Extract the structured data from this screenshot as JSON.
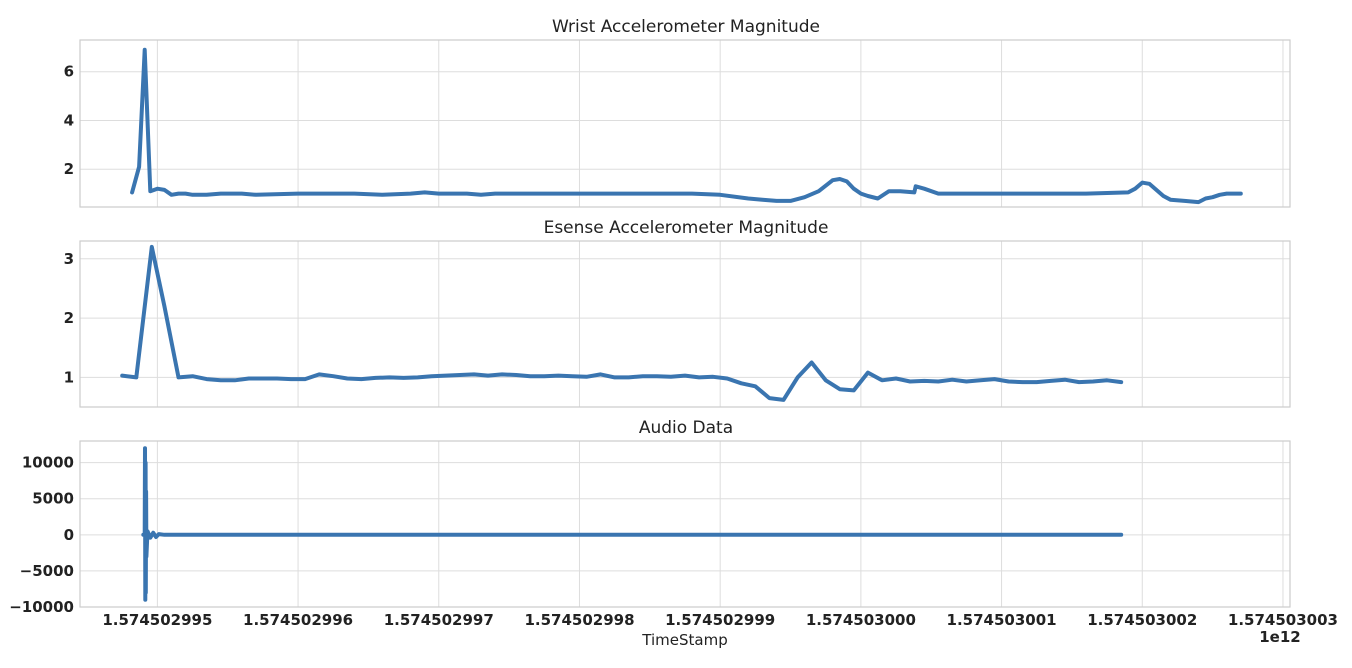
{
  "chart_data": [
    {
      "type": "line",
      "title": "Wrist Accelerometer Magnitude",
      "xlabel": "",
      "ylabel": "",
      "grid": true,
      "xlim": [
        1574502994.45,
        1574503003.05
      ],
      "ylim": [
        0.45,
        7.3
      ],
      "yticks": [
        2,
        4,
        6
      ],
      "ytick_labels": [
        "2",
        "4",
        "6"
      ],
      "series": [
        {
          "color": "#3a75b0",
          "x": [
            1574502994.82,
            1574502994.87,
            1574502994.91,
            1574502994.95,
            1574502995.0,
            1574502995.05,
            1574502995.1,
            1574502995.15,
            1574502995.2,
            1574502995.25,
            1574502995.3,
            1574502995.35,
            1574502995.45,
            1574502995.6,
            1574502995.7,
            1574502996.0,
            1574502996.2,
            1574502996.4,
            1574502996.6,
            1574502996.8,
            1574502996.9,
            1574502997.0,
            1574502997.2,
            1574502997.3,
            1574502997.4,
            1574502997.6,
            1574502998.0,
            1574502998.4,
            1574502998.8,
            1574502999.0,
            1574502999.2,
            1574502999.3,
            1574502999.4,
            1574502999.5,
            1574502999.6,
            1574502999.7,
            1574502999.8,
            1574502999.85,
            1574502999.9,
            1574502999.95,
            1574503000.0,
            1574503000.05,
            1574503000.12,
            1574503000.2,
            1574503000.28,
            1574503000.38,
            1574503000.39,
            1574503000.45,
            1574503000.55,
            1574503001.0,
            1574503001.4,
            1574503001.6,
            1574503001.9,
            1574503001.95,
            1574503002.0,
            1574503002.05,
            1574503002.15,
            1574503002.2,
            1574503002.3,
            1574503002.4,
            1574503002.45,
            1574503002.5,
            1574503002.55,
            1574503002.6,
            1574503002.7
          ],
          "y": [
            1.05,
            2.1,
            6.9,
            1.1,
            1.2,
            1.15,
            0.95,
            1.0,
            1.0,
            0.95,
            0.95,
            0.95,
            1.0,
            1.0,
            0.95,
            1.0,
            1.0,
            1.0,
            0.95,
            1.0,
            1.05,
            1.0,
            1.0,
            0.95,
            1.0,
            1.0,
            1.0,
            1.0,
            1.0,
            0.95,
            0.8,
            0.75,
            0.7,
            0.7,
            0.85,
            1.1,
            1.55,
            1.6,
            1.5,
            1.2,
            1.0,
            0.9,
            0.8,
            1.1,
            1.1,
            1.05,
            1.3,
            1.2,
            1.0,
            1.0,
            1.0,
            1.0,
            1.05,
            1.2,
            1.45,
            1.4,
            0.9,
            0.75,
            0.7,
            0.65,
            0.8,
            0.85,
            0.95,
            1.0,
            1.0
          ]
        }
      ]
    },
    {
      "type": "line",
      "title": "Esense Accelerometer Magnitude",
      "xlabel": "",
      "ylabel": "",
      "grid": true,
      "xlim": [
        1574502994.45,
        1574503003.05
      ],
      "ylim": [
        0.5,
        3.3
      ],
      "yticks": [
        1,
        2,
        3
      ],
      "ytick_labels": [
        "1",
        "2",
        "3"
      ],
      "series": [
        {
          "color": "#3a75b0",
          "x": [
            1574502994.75,
            1574502994.85,
            1574502994.96,
            1574502995.05,
            1574502995.15,
            1574502995.25,
            1574502995.35,
            1574502995.45,
            1574502995.55,
            1574502995.65,
            1574502995.75,
            1574502995.85,
            1574502995.95,
            1574502996.05,
            1574502996.15,
            1574502996.25,
            1574502996.35,
            1574502996.45,
            1574502996.55,
            1574502996.65,
            1574502996.75,
            1574502996.85,
            1574502996.95,
            1574502997.05,
            1574502997.15,
            1574502997.25,
            1574502997.35,
            1574502997.45,
            1574502997.55,
            1574502997.65,
            1574502997.75,
            1574502997.85,
            1574502997.95,
            1574502998.05,
            1574502998.15,
            1574502998.25,
            1574502998.35,
            1574502998.45,
            1574502998.55,
            1574502998.65,
            1574502998.75,
            1574502998.85,
            1574502998.95,
            1574502999.05,
            1574502999.15,
            1574502999.25,
            1574502999.35,
            1574502999.45,
            1574502999.55,
            1574502999.65,
            1574502999.75,
            1574502999.85,
            1574502999.95,
            1574503000.05,
            1574503000.15,
            1574503000.25,
            1574503000.35,
            1574503000.45,
            1574503000.55,
            1574503000.65,
            1574503000.75,
            1574503000.85,
            1574503000.95,
            1574503001.05,
            1574503001.15,
            1574503001.25,
            1574503001.35,
            1574503001.45,
            1574503001.55,
            1574503001.65,
            1574503001.75,
            1574503001.85
          ],
          "y": [
            1.03,
            1.0,
            3.2,
            2.2,
            1.0,
            1.02,
            0.97,
            0.95,
            0.95,
            0.98,
            0.98,
            0.98,
            0.97,
            0.97,
            1.05,
            1.02,
            0.98,
            0.97,
            0.99,
            1.0,
            0.99,
            1.0,
            1.02,
            1.03,
            1.04,
            1.05,
            1.03,
            1.05,
            1.04,
            1.02,
            1.02,
            1.03,
            1.02,
            1.01,
            1.05,
            1.0,
            1.0,
            1.02,
            1.02,
            1.01,
            1.03,
            1.0,
            1.01,
            0.98,
            0.9,
            0.85,
            0.65,
            0.62,
            1.0,
            1.25,
            0.95,
            0.8,
            0.78,
            1.08,
            0.95,
            0.98,
            0.93,
            0.94,
            0.93,
            0.96,
            0.93,
            0.95,
            0.97,
            0.93,
            0.92,
            0.92,
            0.94,
            0.96,
            0.92,
            0.93,
            0.95,
            0.92
          ]
        }
      ]
    },
    {
      "type": "line",
      "title": "Audio Data",
      "xlabel": "TimeStamp",
      "ylabel": "",
      "grid": true,
      "xlim": [
        1574502994.45,
        1574503003.05
      ],
      "ylim": [
        -10000,
        13000
      ],
      "yticks": [
        -10000,
        -5000,
        0,
        5000,
        10000
      ],
      "ytick_labels": [
        "−10000",
        "−5000",
        "0",
        "5000",
        "10000"
      ],
      "xticks": [
        1574502995,
        1574502996,
        1574502997,
        1574502998,
        1574502999,
        1574503000,
        1574503001,
        1574503002,
        1574503003
      ],
      "xtick_labels": [
        "1.574502995",
        "1.574502996",
        "1.574502997",
        "1.574502998",
        "1.574502999",
        "1.574503000",
        "1.574503001",
        "1.574503002",
        "1.574503003"
      ],
      "offset_label": "1e12",
      "series": [
        {
          "color": "#3a75b0",
          "x": [
            1574502994.9,
            1574502994.91,
            1574502994.912,
            1574502994.914,
            1574502994.916,
            1574502994.918,
            1574502994.92,
            1574502994.922,
            1574502994.93,
            1574502994.95,
            1574502994.97,
            1574502994.99,
            1574502995.01,
            1574502995.05,
            1574502995.1,
            1574502995.2,
            1574502995.5,
            1574502996.0,
            1574502996.55,
            1574502997.0,
            1574502997.35,
            1574502998.0,
            1574502998.85,
            1574502999.5,
            1574503000.0,
            1574503000.5,
            1574503001.0,
            1574503001.5,
            1574503001.85
          ],
          "y": [
            0,
            0,
            12000,
            -9000,
            10000,
            -8000,
            6000,
            -3000,
            500,
            -400,
            300,
            -300,
            100,
            0,
            0,
            0,
            0,
            0,
            0,
            0,
            0,
            0,
            0,
            0,
            0,
            0,
            0,
            0,
            0
          ]
        }
      ]
    }
  ]
}
